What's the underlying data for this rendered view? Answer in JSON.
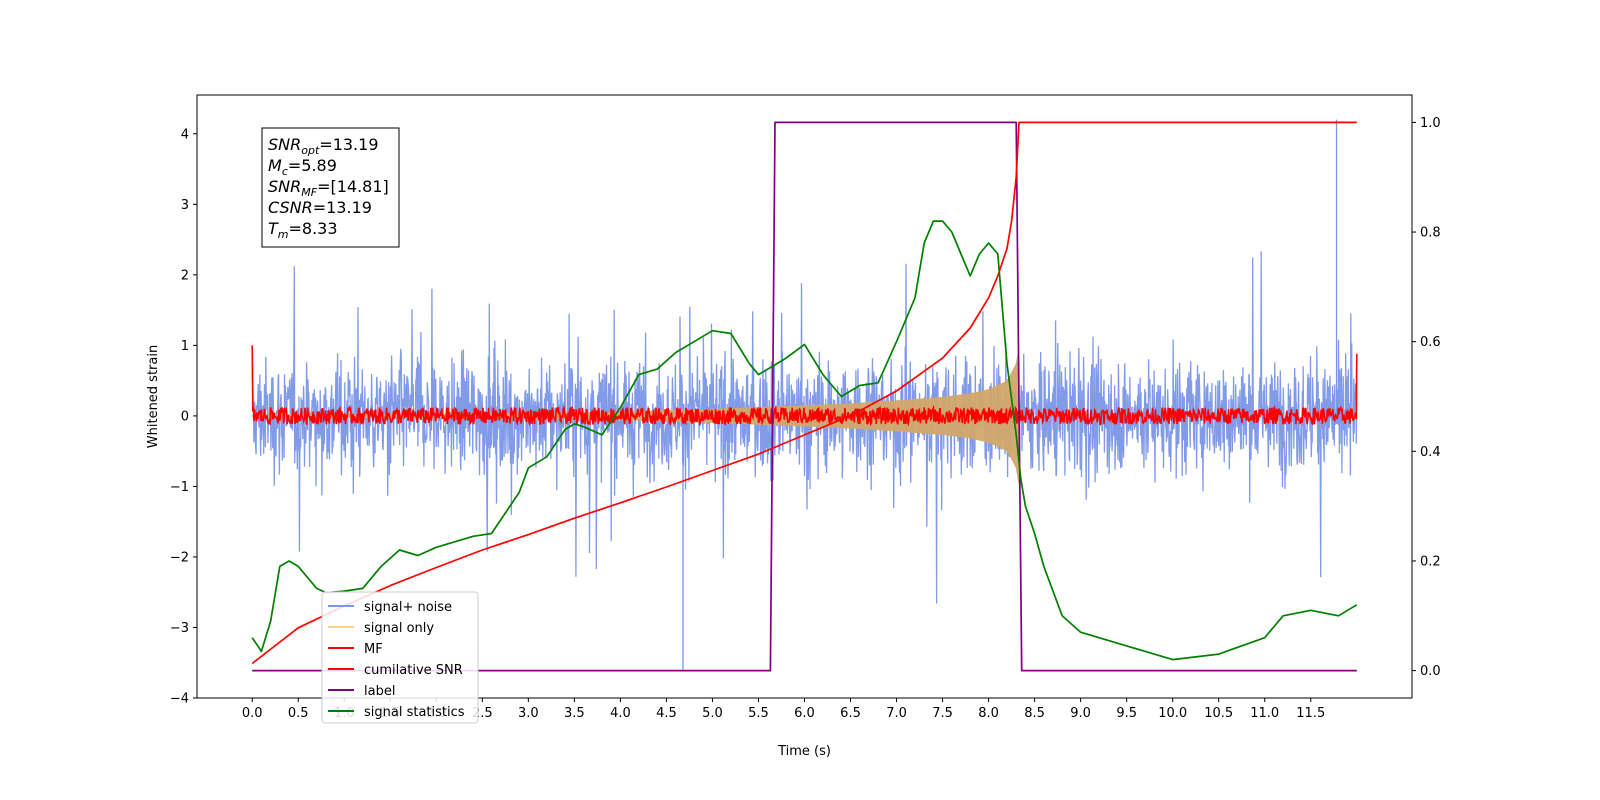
{
  "chart_data": {
    "type": "line",
    "xlabel": "Time (s)",
    "ylabel": "Whitened strain",
    "xlim": [
      -0.6,
      12.6
    ],
    "ylim": [
      -4.0,
      4.55
    ],
    "ylim_right": [
      -0.05,
      1.05
    ],
    "xticks": [
      0.0,
      0.5,
      1.0,
      1.5,
      2.0,
      2.5,
      3.0,
      3.5,
      4.0,
      4.5,
      5.0,
      5.5,
      6.0,
      6.5,
      7.0,
      7.5,
      8.0,
      8.5,
      9.0,
      9.5,
      10.0,
      10.5,
      11.0,
      11.5
    ],
    "xtick_labels": [
      "0.0",
      "0.5",
      "1.0",
      "1.5",
      "2.0",
      "2.5",
      "3.0",
      "3.5",
      "4.0",
      "4.5",
      "5.0",
      "5.5",
      "6.0",
      "6.5",
      "7.0",
      "7.5",
      "8.0",
      "8.5",
      "9.0",
      "9.5",
      "10.0",
      "10.5",
      "11.0",
      "11.5"
    ],
    "yticks_left": [
      -4,
      -3,
      -2,
      -1,
      0,
      1,
      2,
      3,
      4
    ],
    "ytick_labels_left": [
      "−4",
      "−3",
      "−2",
      "−1",
      "0",
      "1",
      "2",
      "3",
      "4"
    ],
    "yticks_right": [
      0.0,
      0.2,
      0.4,
      0.6,
      0.8,
      1.0
    ],
    "ytick_labels_right": [
      "0.0",
      "0.2",
      "0.4",
      "0.6",
      "0.8",
      "1.0"
    ],
    "grid": false,
    "legend_position": "lower-left",
    "legend": [
      {
        "label": "signal+ noise",
        "color": "#7b96e8"
      },
      {
        "label": "signal only",
        "color": "#ffd08a"
      },
      {
        "label": "MF",
        "color": "#ff0000"
      },
      {
        "label": "cumilative SNR",
        "color": "#ff0000"
      },
      {
        "label": "label",
        "color": "#800080"
      },
      {
        "label": "signal statistics",
        "color": "#008000"
      }
    ],
    "annotations": [
      {
        "name": "SNR",
        "sub": "opt",
        "value": "=13.19"
      },
      {
        "name": "M",
        "sub": "c",
        "value": "=5.89"
      },
      {
        "name": "SNR",
        "sub": "MF",
        "value": "=[14.81]"
      },
      {
        "name": "CSNR",
        "sub": "",
        "value": "=13.19"
      },
      {
        "name": "T",
        "sub": "m",
        "value": "=8.33"
      }
    ],
    "series": [
      {
        "name": "signal+ noise",
        "axis": "left",
        "color": "#7b96e8",
        "t_range": [
          0.0,
          12.0
        ],
        "typical_band": [
          -1.5,
          1.5
        ],
        "max_peak": 4.2,
        "min_peak": -3.6
      },
      {
        "name": "signal only",
        "axis": "left",
        "color": "#d2a66a",
        "t_range": [
          0.0,
          8.33
        ],
        "envelope": {
          "t": [
            0.0,
            2.0,
            4.0,
            5.0,
            6.0,
            6.5,
            7.0,
            7.5,
            7.8,
            8.0,
            8.2,
            8.3,
            8.33
          ],
          "amp": [
            0.02,
            0.03,
            0.06,
            0.1,
            0.15,
            0.18,
            0.22,
            0.27,
            0.32,
            0.38,
            0.5,
            0.75,
            1.0
          ]
        }
      },
      {
        "name": "MF",
        "axis": "left",
        "color": "#ff0000",
        "t_range": [
          0.0,
          12.0
        ],
        "noise_amplitude": 0.12,
        "edge_values": {
          "start": 1.0,
          "end": 0.88
        }
      },
      {
        "name": "cumilative SNR",
        "axis": "right",
        "color": "#ff0000",
        "t": [
          0.0,
          0.5,
          1.0,
          1.5,
          2.0,
          2.5,
          3.0,
          3.5,
          4.0,
          4.5,
          5.0,
          5.5,
          6.0,
          6.5,
          7.0,
          7.5,
          7.8,
          8.0,
          8.1,
          8.2,
          8.25,
          8.3,
          8.33,
          8.4,
          9.0,
          10.0,
          11.0,
          12.0
        ],
        "values": [
          0.013,
          0.078,
          0.118,
          0.155,
          0.188,
          0.22,
          0.248,
          0.278,
          0.306,
          0.335,
          0.365,
          0.395,
          0.43,
          0.465,
          0.51,
          0.57,
          0.625,
          0.68,
          0.72,
          0.77,
          0.82,
          0.9,
          1.0,
          1.0,
          1.0,
          1.0,
          1.0,
          1.0
        ]
      },
      {
        "name": "label",
        "axis": "right",
        "color": "#800080",
        "t": [
          0.0,
          5.63,
          5.68,
          8.3,
          8.36,
          12.0
        ],
        "values": [
          0.0,
          0.0,
          1.0,
          1.0,
          0.0,
          0.0
        ]
      },
      {
        "name": "signal statistics",
        "axis": "right",
        "color": "#008000",
        "t": [
          0.0,
          0.1,
          0.2,
          0.3,
          0.4,
          0.5,
          0.6,
          0.7,
          0.8,
          1.0,
          1.2,
          1.4,
          1.6,
          1.8,
          2.0,
          2.2,
          2.4,
          2.6,
          2.8,
          2.9,
          3.0,
          3.2,
          3.4,
          3.5,
          3.6,
          3.8,
          4.0,
          4.2,
          4.4,
          4.6,
          4.8,
          5.0,
          5.2,
          5.4,
          5.5,
          5.6,
          5.8,
          6.0,
          6.2,
          6.4,
          6.6,
          6.8,
          7.0,
          7.2,
          7.3,
          7.4,
          7.5,
          7.6,
          7.7,
          7.8,
          7.9,
          8.0,
          8.1,
          8.2,
          8.3,
          8.35,
          8.4,
          8.5,
          8.6,
          8.8,
          9.0,
          9.5,
          10.0,
          10.5,
          11.0,
          11.2,
          11.5,
          11.8,
          12.0
        ],
        "values": [
          0.06,
          0.035,
          0.09,
          0.19,
          0.2,
          0.19,
          0.17,
          0.15,
          0.142,
          0.145,
          0.15,
          0.19,
          0.22,
          0.21,
          0.225,
          0.235,
          0.245,
          0.25,
          0.3,
          0.325,
          0.37,
          0.39,
          0.44,
          0.45,
          0.445,
          0.43,
          0.48,
          0.54,
          0.55,
          0.58,
          0.6,
          0.62,
          0.615,
          0.56,
          0.54,
          0.55,
          0.57,
          0.595,
          0.54,
          0.5,
          0.52,
          0.525,
          0.6,
          0.68,
          0.78,
          0.82,
          0.82,
          0.8,
          0.76,
          0.72,
          0.76,
          0.78,
          0.76,
          0.56,
          0.43,
          0.35,
          0.3,
          0.25,
          0.19,
          0.1,
          0.07,
          0.045,
          0.02,
          0.03,
          0.06,
          0.1,
          0.11,
          0.1,
          0.12
        ]
      }
    ]
  }
}
